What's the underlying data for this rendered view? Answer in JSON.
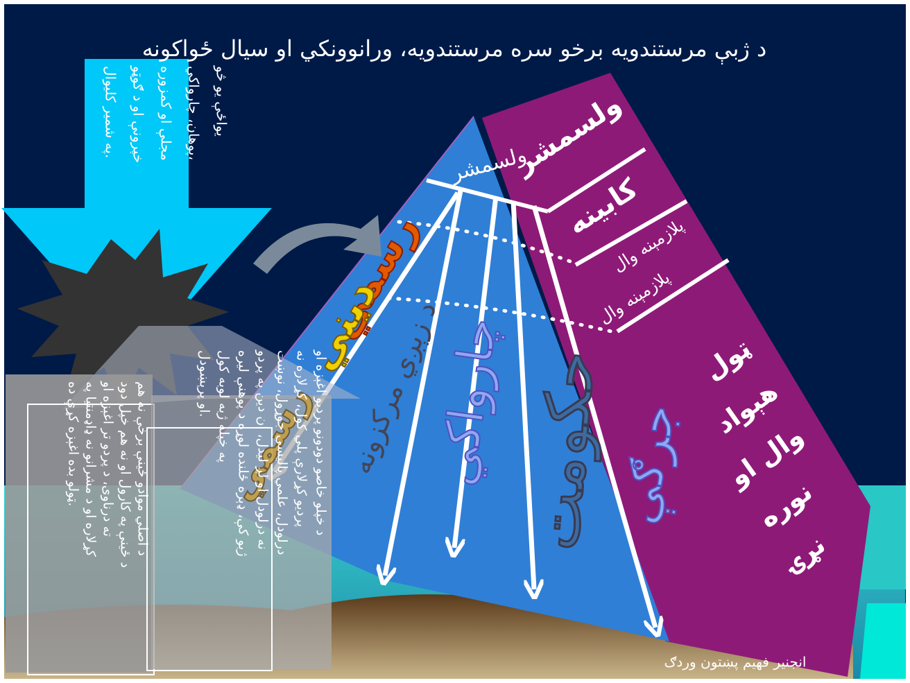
{
  "title": "د ژبې مرستندویه برخو سره مرستندویه، ورانوونکي او سیال ځواکونه",
  "arrow_text": [
    "يواځې يو څو",
    "پوهان، چارواکي،",
    "مجلې او کمزوره",
    "خپرونې او د ګوټو",
    "په شمير کليوال."
  ],
  "pyramid": {
    "apex": "ولسمشر",
    "levels": [
      "ولسمشر",
      "کابينه",
      "پلازمېنه وال"
    ],
    "base": [
      "ټول",
      "هېواد",
      "وال او",
      "نوره",
      "نړۍ"
    ]
  },
  "forces": {
    "orange": "رسمي",
    "yellow": "ديني",
    "gold": "رسمي"
  },
  "channels": [
    "د زېږي مرکزونه",
    "چارواکي",
    "حکومت",
    "جرګې"
  ],
  "boxes": [
    [
      "د اصلي موادو ځينې برخې نه هم",
      "د ځينې په کارول او نه هم خپل دود",
      "ته درناوی، د پردو تر اغېزه او",
      "کړلاره او د مشرانو نه ډاډمنتيا په",
      "ټولو بده اغېزه کړې ده."
    ],
    [
      "د خپلو خاصو دودونو پردیو اغېزه او",
      "پردیو کړلارې پلي کول، کړلاره نه",
      "درلودل، علمي پاليسي جوړول، نوښت",
      "نه درلودل او لږ ليدل، ان دين په پردو",
      "ژبو کې، ډېره ځلنده لوړه د پوهنې ليره",
      "په خپله ژبه لوبه کول",
      "او پرېښودل."
    ]
  ],
  "footer": "انجنير فهيم پښتون وردګ"
}
